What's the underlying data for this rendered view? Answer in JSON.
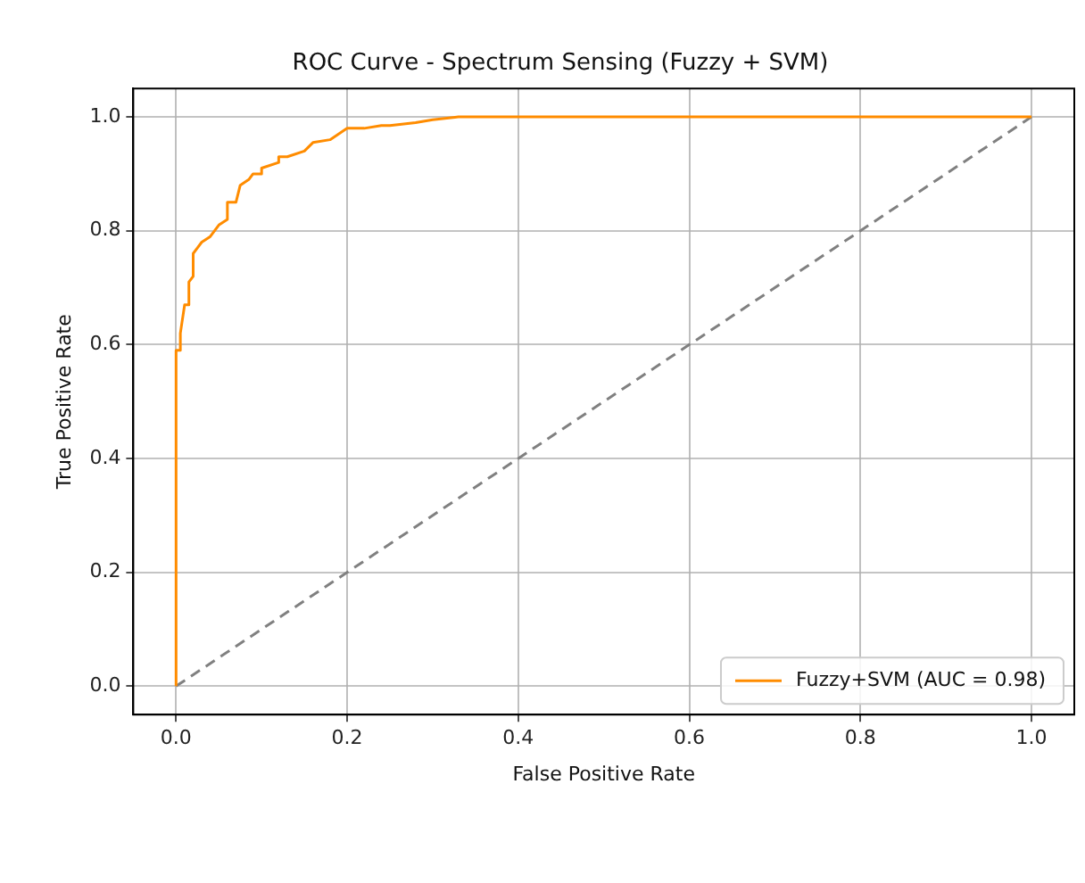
{
  "chart_data": {
    "type": "line",
    "title": "ROC Curve - Spectrum Sensing (Fuzzy + SVM)",
    "xlabel": "False Positive Rate",
    "ylabel": "True Positive Rate",
    "xlim": [
      -0.05,
      1.05
    ],
    "ylim": [
      -0.05,
      1.05
    ],
    "xticks": [
      {
        "value": 0,
        "label": "0.0"
      },
      0.2,
      0.4,
      0.6,
      0.8,
      {
        "value": 1,
        "label": "1.0"
      }
    ],
    "yticks": [
      {
        "value": 0,
        "label": "0.0"
      },
      0.2,
      0.4,
      0.6,
      0.8,
      {
        "value": 1,
        "label": "1.0"
      }
    ],
    "grid": true,
    "legend": "bottom right",
    "marker": "none",
    "series": [
      {
        "name": "Fuzzy+SVM (AUC = 0.98)",
        "color": "#ff8c00",
        "line_style": "solid",
        "x": [
          0,
          0,
          0.005,
          0.005,
          0.01,
          0.015,
          0.015,
          0.02,
          0.02,
          0.025,
          0.03,
          0.04,
          0.05,
          0.06,
          0.06,
          0.07,
          0.075,
          0.085,
          0.09,
          0.1,
          0.1,
          0.12,
          0.12,
          0.13,
          0.15,
          0.16,
          0.18,
          0.2,
          0.22,
          0.24,
          0.25,
          0.28,
          0.3,
          0.33,
          1
        ],
        "values": [
          0,
          0.59,
          0.59,
          0.62,
          0.67,
          0.67,
          0.71,
          0.72,
          0.76,
          0.77,
          0.78,
          0.79,
          0.81,
          0.82,
          0.85,
          0.85,
          0.88,
          0.89,
          0.9,
          0.9,
          0.91,
          0.92,
          0.93,
          0.93,
          0.94,
          0.955,
          0.96,
          0.98,
          0.98,
          0.985,
          0.985,
          0.99,
          0.995,
          1,
          1
        ]
      },
      {
        "color": "#808080",
        "line_style": "dashed",
        "x": [
          0,
          1
        ],
        "values": [
          0,
          1
        ]
      }
    ]
  }
}
